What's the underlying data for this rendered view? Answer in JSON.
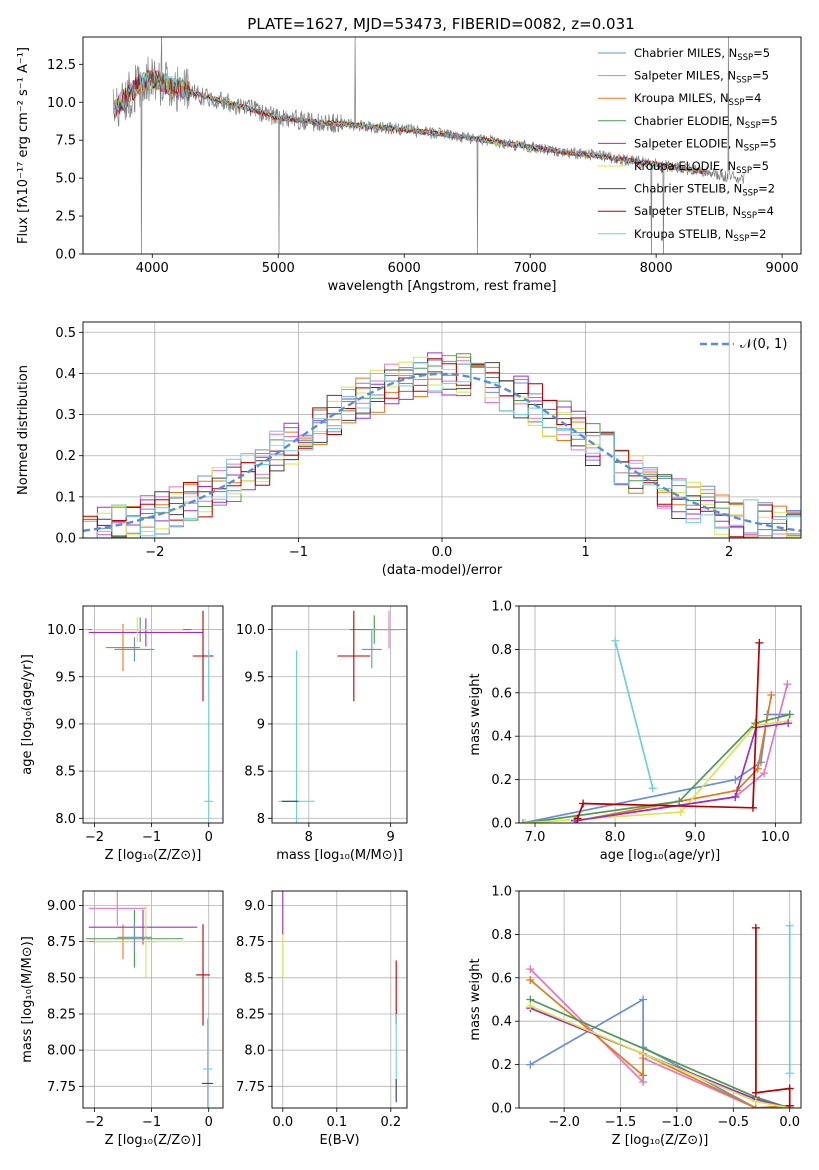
{
  "title": "PLATE=1627, MJD=53473, FIBERID=0082, z=0.031",
  "legend": {
    "entries": [
      {
        "label": "Chabrier MILES, N",
        "sub": "SSP",
        "suffix": "=5",
        "color": "#6a8fd8"
      },
      {
        "label": "Salpeter MILES, N",
        "sub": "SSP",
        "suffix": "=5",
        "color": "#e377c2"
      },
      {
        "label": "Kroupa MILES, N",
        "sub": "SSP",
        "suffix": "=4",
        "color": "#e07b1a"
      },
      {
        "label": "Chabrier ELODIE, N",
        "sub": "SSP",
        "suffix": "=5",
        "color": "#4f9a4f"
      },
      {
        "label": "Salpeter ELODIE, N",
        "sub": "SSP",
        "suffix": "=5",
        "color": "#9b30c9"
      },
      {
        "label": "Kroupa ELODIE, N",
        "sub": "SSP",
        "suffix": "=5",
        "color": "#d7e64a"
      },
      {
        "label": "Chabrier STELIB, N",
        "sub": "SSP",
        "suffix": "=2",
        "color": "#444444"
      },
      {
        "label": "Salpeter STELIB, N",
        "sub": "SSP",
        "suffix": "=4",
        "color": "#b40000"
      },
      {
        "label": "Kroupa STELIB, N",
        "sub": "SSP",
        "suffix": "=2",
        "color": "#6fd0d8"
      }
    ]
  },
  "hist_legend": "𝒩(0, 1)",
  "chart_data": [
    {
      "type": "line",
      "panel": "spectrum",
      "xlabel": "wavelength [Angstrom, rest frame]",
      "ylabel": "Flux [fλ10⁻¹⁷ erg cm⁻² s⁻¹ A⁻¹]",
      "xlim": [
        3450,
        9150
      ],
      "ylim": [
        0,
        14.3
      ],
      "xticks": [
        4000,
        5000,
        6000,
        7000,
        8000,
        9000
      ],
      "yticks": [
        0.0,
        2.5,
        5.0,
        7.5,
        10.0,
        12.5
      ],
      "continuum_x": [
        3700,
        3900,
        4000,
        4200,
        4500,
        4800,
        5000,
        5300,
        5600,
        6000,
        6400,
        6800,
        7200,
        7600,
        8000,
        8400,
        8800,
        9100
      ],
      "continuum_y": [
        9.6,
        11.2,
        11.6,
        10.9,
        10.2,
        9.5,
        9.0,
        8.7,
        8.5,
        8.2,
        7.8,
        7.3,
        6.8,
        6.4,
        5.9,
        5.4,
        4.8,
        4.6
      ]
    },
    {
      "type": "line",
      "panel": "residual_histogram",
      "xlabel": "(data-model)/error",
      "ylabel": "Normed distribution",
      "xlim": [
        -2.5,
        2.5
      ],
      "ylim": [
        0,
        0.525
      ],
      "xticks": [
        -2,
        -1,
        0,
        1,
        2
      ],
      "yticks": [
        0.0,
        0.1,
        0.2,
        0.3,
        0.4,
        0.5
      ],
      "bin_edges_from": -2.5,
      "bin_width": 0.1,
      "gaussian": {
        "mu": 0,
        "sigma": 1
      }
    },
    {
      "type": "scatter",
      "panel": "age_vs_Z",
      "xlabel": "Z [log₁₀(Z/Z⊙)]",
      "ylabel": "age  [log₁₀(age/yr)]",
      "xlim": [
        -2.2,
        0.25
      ],
      "ylim": [
        7.95,
        10.25
      ],
      "xticks": [
        -2,
        -1,
        0
      ],
      "yticks": [
        8.0,
        8.5,
        9.0,
        9.5,
        10.0
      ],
      "points": [
        {
          "x": -1.2,
          "y": 10.0,
          "xerr": 0.9,
          "yerr": 0.13,
          "color": "#4f9a4f"
        },
        {
          "x": -1.3,
          "y": 9.79,
          "xerr": 0.35,
          "yerr": 0.13,
          "color": "#6a8fd8"
        },
        {
          "x": -1.5,
          "y": 9.81,
          "xerr": 0.3,
          "yerr": 0.25,
          "color": "#e07b1a"
        },
        {
          "x": -1.1,
          "y": 9.97,
          "xerr": 1.0,
          "yerr": 0.15,
          "color": "#9b30c9"
        },
        {
          "x": -1.25,
          "y": 10.0,
          "xerr": 0.8,
          "yerr": 0.13,
          "color": "#d7e64a"
        },
        {
          "x": -0.1,
          "y": 9.72,
          "xerr": 0.18,
          "yerr": 0.48,
          "color": "#b40000"
        },
        {
          "x": 0.0,
          "y": 8.18,
          "xerr": 0.08,
          "yerr": 1.6,
          "color": "#6fd0d8"
        }
      ]
    },
    {
      "type": "scatter",
      "panel": "age_vs_mass",
      "xlabel": "mass [log₁₀(M/M⊙)]",
      "ylabel": "",
      "xlim": [
        7.55,
        9.2
      ],
      "ylim": [
        7.95,
        10.25
      ],
      "xticks": [
        8,
        9
      ],
      "yticks": [
        8.0,
        8.5,
        9.0,
        9.5,
        10.0
      ],
      "points": [
        {
          "x": 8.8,
          "y": 10.0,
          "xerr": 0.3,
          "yerr": 0.15,
          "color": "#4f9a4f"
        },
        {
          "x": 8.77,
          "y": 9.79,
          "xerr": 0.12,
          "yerr": 0.2,
          "color": "#6a8fd8"
        },
        {
          "x": 8.98,
          "y": 10.0,
          "xerr": 0.2,
          "yerr": 0.2,
          "color": "#e377c2"
        },
        {
          "x": 8.55,
          "y": 9.72,
          "xerr": 0.2,
          "yerr": 0.48,
          "color": "#b40000"
        },
        {
          "x": 7.85,
          "y": 8.18,
          "xerr": 0.22,
          "yerr": 1.6,
          "color": "#6fd0d8"
        },
        {
          "x": 7.77,
          "y": 8.18,
          "xerr": 0.1,
          "yerr": 0.0,
          "color": "#444444"
        }
      ]
    },
    {
      "type": "line",
      "panel": "mass_weight_vs_age",
      "xlabel": "age  [log₁₀(age/yr)]",
      "ylabel": "mass weight",
      "xlim": [
        6.8,
        10.32
      ],
      "ylim": [
        0,
        1.0
      ],
      "xticks": [
        7,
        8,
        9,
        10
      ],
      "yticks": [
        0.0,
        0.2,
        0.4,
        0.6,
        0.8,
        1.0
      ],
      "series": [
        {
          "color": "#6fd0d8",
          "x": [
            8.0,
            8.47
          ],
          "y": [
            0.84,
            0.16
          ]
        },
        {
          "color": "#6a8fd8",
          "x": [
            6.85,
            9.5,
            9.82,
            9.9,
            10.18
          ],
          "y": [
            0.0,
            0.2,
            0.28,
            0.5,
            0.5
          ]
        },
        {
          "color": "#e377c2",
          "x": [
            7.5,
            9.5,
            9.86,
            10.15
          ],
          "y": [
            0.01,
            0.12,
            0.23,
            0.64
          ]
        },
        {
          "color": "#e07b1a",
          "x": [
            7.52,
            9.52,
            9.78,
            9.95
          ],
          "y": [
            0.01,
            0.15,
            0.25,
            0.59
          ]
        },
        {
          "color": "#4f9a4f",
          "x": [
            6.88,
            8.8,
            9.75,
            10.18
          ],
          "y": [
            0.0,
            0.1,
            0.46,
            0.5
          ]
        },
        {
          "color": "#d7e64a",
          "x": [
            6.88,
            8.82,
            9.75,
            10.16
          ],
          "y": [
            0.0,
            0.05,
            0.45,
            0.47
          ]
        },
        {
          "color": "#9b30c9",
          "x": [
            7.5,
            9.5,
            9.76,
            10.16
          ],
          "y": [
            0.01,
            0.12,
            0.44,
            0.46
          ]
        },
        {
          "color": "#b40000",
          "x": [
            7.53,
            7.6,
            9.72,
            9.8
          ],
          "y": [
            0.02,
            0.09,
            0.07,
            0.83
          ]
        }
      ]
    },
    {
      "type": "scatter",
      "panel": "mass_vs_Z",
      "xlabel": "Z [log₁₀(Z/Z⊙)]",
      "ylabel": "mass [log₁₀(M/M⊙)]",
      "xlim": [
        -2.2,
        0.25
      ],
      "ylim": [
        7.6,
        9.1
      ],
      "xticks": [
        -2,
        -1,
        0
      ],
      "yticks": [
        7.75,
        8.0,
        8.25,
        8.5,
        8.75,
        9.0
      ],
      "points": [
        {
          "x": -1.3,
          "y": 8.77,
          "xerr": 0.85,
          "yerr": 0.2,
          "color": "#4f9a4f"
        },
        {
          "x": -1.5,
          "y": 8.75,
          "xerr": 0.6,
          "yerr": 0.12,
          "color": "#e07b1a"
        },
        {
          "x": -1.6,
          "y": 8.98,
          "xerr": 0.5,
          "yerr": 0.12,
          "color": "#e377c2"
        },
        {
          "x": -1.15,
          "y": 8.85,
          "xerr": 0.95,
          "yerr": 0.12,
          "color": "#9b30c9"
        },
        {
          "x": -1.1,
          "y": 8.75,
          "xerr": 0.9,
          "yerr": 0.25,
          "color": "#d7e64a"
        },
        {
          "x": -1.3,
          "y": 8.78,
          "xerr": 0.3,
          "yerr": 0.1,
          "color": "#6a8fd8"
        },
        {
          "x": -0.1,
          "y": 8.52,
          "xerr": 0.12,
          "yerr": 0.35,
          "color": "#b40000"
        },
        {
          "x": -0.02,
          "y": 7.87,
          "xerr": 0.08,
          "yerr": 0.35,
          "color": "#6fd0d8"
        },
        {
          "x": -0.02,
          "y": 7.77,
          "xerr": 0.1,
          "yerr": 0.0,
          "color": "#444444"
        }
      ]
    },
    {
      "type": "scatter",
      "panel": "mass_vs_EBV",
      "xlabel": "E(B-V)",
      "ylabel": "",
      "xlim": [
        -0.02,
        0.23
      ],
      "ylim": [
        7.6,
        9.1
      ],
      "xticks": [
        0.0,
        0.1,
        0.2
      ],
      "yticks": [
        7.75,
        8.0,
        8.25,
        8.5,
        8.75,
        9.0
      ],
      "points": [
        {
          "x": 0.0,
          "y": 8.8,
          "xerr": 0,
          "yerr": 0.3,
          "color": "#d7e64a"
        },
        {
          "x": 0.0,
          "y": 8.95,
          "xerr": 0,
          "yerr": 0.15,
          "color": "#9b30c9"
        },
        {
          "x": 0.21,
          "y": 8.4,
          "xerr": 0,
          "yerr": 0.22,
          "color": "#b40000"
        },
        {
          "x": 0.21,
          "y": 7.95,
          "xerr": 0,
          "yerr": 0.3,
          "color": "#6fd0d8"
        },
        {
          "x": 0.21,
          "y": 7.72,
          "xerr": 0,
          "yerr": 0.08,
          "color": "#444444"
        }
      ]
    },
    {
      "type": "line",
      "panel": "mass_weight_vs_Z",
      "xlabel": "Z [log₁₀(Z/Z⊙)]",
      "ylabel": "mass weight",
      "xlim": [
        -2.4,
        0.1
      ],
      "ylim": [
        0,
        1.0
      ],
      "xticks": [
        -2.0,
        -1.5,
        -1.0,
        -0.5,
        0.0
      ],
      "yticks": [
        0.0,
        0.2,
        0.4,
        0.6,
        0.8,
        1.0
      ],
      "series": [
        {
          "color": "#6a8fd8",
          "x": [
            -2.3,
            -1.3,
            -1.3,
            -0.3,
            0.0
          ],
          "y": [
            0.2,
            0.5,
            0.28,
            0.0,
            0.0
          ]
        },
        {
          "color": "#e377c2",
          "x": [
            -2.3,
            -1.3,
            -1.3,
            -0.3,
            0.0
          ],
          "y": [
            0.64,
            0.12,
            0.23,
            0.0,
            0.01
          ]
        },
        {
          "color": "#e07b1a",
          "x": [
            -2.3,
            -1.3,
            -1.3,
            -0.3,
            0.0
          ],
          "y": [
            0.59,
            0.15,
            0.25,
            0.0,
            0.01
          ]
        },
        {
          "color": "#4f9a4f",
          "x": [
            -2.3,
            -0.3,
            0.0
          ],
          "y": [
            0.5,
            0.05,
            0.0
          ]
        },
        {
          "color": "#9b30c9",
          "x": [
            -2.3,
            -0.3,
            0.0
          ],
          "y": [
            0.46,
            0.04,
            0.0
          ]
        },
        {
          "color": "#d7e64a",
          "x": [
            -2.3,
            -0.3,
            0.0
          ],
          "y": [
            0.47,
            0.03,
            0.0
          ]
        },
        {
          "color": "#b40000",
          "x": [
            -0.3,
            -0.3,
            0.0,
            0.0
          ],
          "y": [
            0.83,
            0.07,
            0.09,
            0.01
          ]
        },
        {
          "color": "#6fd0d8",
          "x": [
            0.0,
            0.0
          ],
          "y": [
            0.84,
            0.16
          ]
        }
      ]
    }
  ]
}
